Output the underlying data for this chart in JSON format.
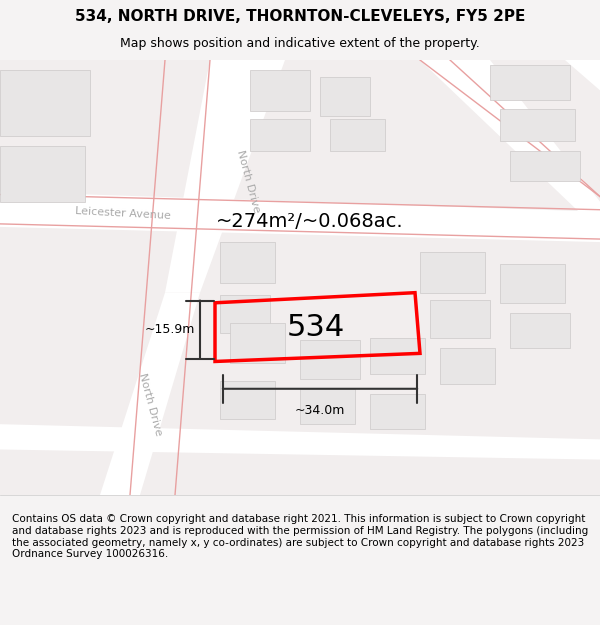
{
  "title": "534, NORTH DRIVE, THORNTON-CLEVELEYS, FY5 2PE",
  "subtitle": "Map shows position and indicative extent of the property.",
  "footer": "Contains OS data © Crown copyright and database right 2021. This information is subject to Crown copyright and database rights 2023 and is reproduced with the permission of HM Land Registry. The polygons (including the associated geometry, namely x, y co-ordinates) are subject to Crown copyright and database rights 2023 Ordnance Survey 100026316.",
  "area_label": "~274m²/~0.068ac.",
  "plot_number": "534",
  "width_label": "~34.0m",
  "height_label": "~15.9m",
  "bg_color": "#f0eeee",
  "map_bg": "#f5f3f3",
  "road_color": "#ffffff",
  "plot_color": "#ff0000",
  "grid_line_color": "#e8c8c8",
  "building_color": "#e0dede",
  "building_outline": "#c0b8b8",
  "title_fontsize": 11,
  "subtitle_fontsize": 9,
  "footer_fontsize": 7.5,
  "label_fontsize": 14,
  "plot_label_fontsize": 22
}
